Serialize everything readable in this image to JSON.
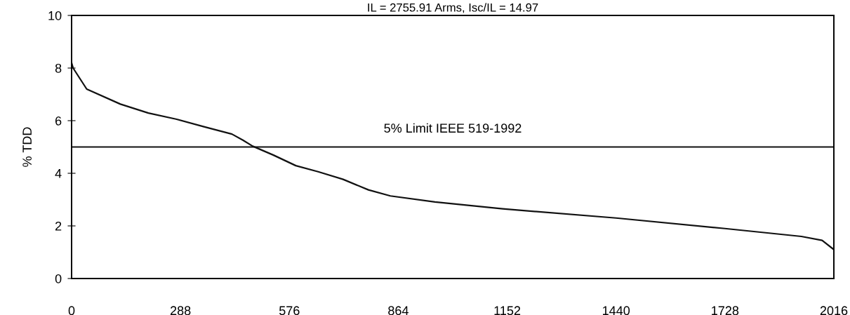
{
  "chart_data": {
    "type": "line",
    "title": "IL = 2755.91 Arms, Isc/IL = 14.97",
    "ylabel": "% TDD",
    "x": [
      0,
      4,
      40,
      129,
      203,
      276,
      350,
      424,
      453,
      479,
      534,
      593,
      652,
      718,
      785,
      843,
      961,
      1140,
      1440,
      1728,
      1930,
      1985,
      2016
    ],
    "series": [
      {
        "color": "#111111",
        "values": [
          8.2,
          8.0,
          7.2,
          6.63,
          6.29,
          6.06,
          5.77,
          5.49,
          5.26,
          5.03,
          4.69,
          4.29,
          4.06,
          3.77,
          3.37,
          3.14,
          2.91,
          2.65,
          2.3,
          1.9,
          1.6,
          1.45,
          1.1
        ]
      }
    ],
    "xlim": [
      0,
      2016
    ],
    "xticks": [
      0,
      288,
      576,
      864,
      1152,
      1440,
      1728,
      2016
    ],
    "ylim": [
      0,
      10
    ],
    "yticks": [
      0,
      2,
      4,
      6,
      8,
      10
    ],
    "ref_lines": [
      {
        "axis": "y",
        "value": 5,
        "label": "5% Limit IEEE 519-1992",
        "color": "#111111"
      }
    ],
    "grid": false,
    "legend": false,
    "marker": "none",
    "line_style": "solid"
  }
}
